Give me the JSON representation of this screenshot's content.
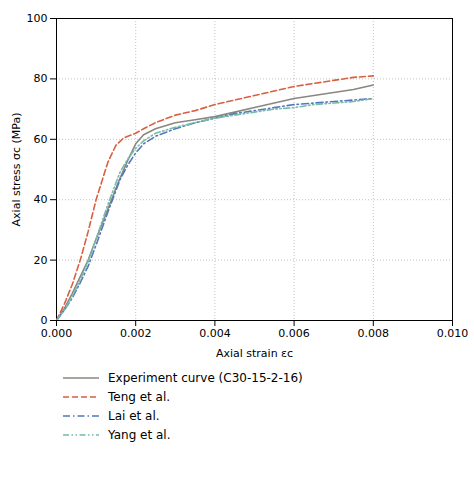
{
  "chart_data": {
    "type": "line",
    "title": "",
    "xlabel": "Axial strain εc",
    "ylabel": "Axial stress σc (MPa)",
    "xlim": [
      0.0,
      0.01
    ],
    "ylim": [
      0,
      100
    ],
    "xticks": [
      {
        "value": 0.0,
        "label": "0.000"
      },
      {
        "value": 0.002,
        "label": "0.002"
      },
      {
        "value": 0.004,
        "label": "0.004"
      },
      {
        "value": 0.006,
        "label": "0.006"
      },
      {
        "value": 0.008,
        "label": "0.008"
      },
      {
        "value": 0.01,
        "label": "0.010"
      }
    ],
    "yticks": [
      0,
      20,
      40,
      60,
      80,
      100
    ],
    "grid": true,
    "legend": "bottom",
    "series": [
      {
        "name": "Experiment curve (C30-15-2-16)",
        "color": "#888880",
        "line_style": "solid",
        "x": [
          0.0,
          0.0002,
          0.0004,
          0.0006,
          0.0008,
          0.001,
          0.0013,
          0.0016,
          0.0018,
          0.002,
          0.0022,
          0.0025,
          0.003,
          0.0035,
          0.004,
          0.0045,
          0.005,
          0.0055,
          0.006,
          0.0065,
          0.007,
          0.0075,
          0.008
        ],
        "values": [
          0.0,
          4.0,
          9.0,
          14.5,
          20.0,
          27.0,
          37.0,
          47.0,
          53.0,
          58.5,
          61.5,
          63.5,
          65.5,
          66.5,
          67.5,
          69.0,
          70.5,
          72.0,
          73.5,
          74.5,
          75.5,
          76.5,
          78.0
        ]
      },
      {
        "name": "Teng et al.",
        "color": "#d96040",
        "line_style": "dashed",
        "x": [
          0.0,
          0.0002,
          0.0004,
          0.0006,
          0.0008,
          0.001,
          0.0013,
          0.0015,
          0.0017,
          0.0019,
          0.002,
          0.0022,
          0.0025,
          0.003,
          0.0035,
          0.004,
          0.0045,
          0.005,
          0.0055,
          0.006,
          0.0065,
          0.007,
          0.0075,
          0.008
        ],
        "values": [
          0.0,
          5.5,
          12.0,
          20.0,
          29.5,
          40.0,
          52.5,
          58.0,
          60.5,
          61.5,
          62.0,
          63.5,
          65.5,
          68.0,
          69.5,
          71.5,
          73.0,
          74.5,
          76.0,
          77.5,
          78.5,
          79.5,
          80.5,
          81.0
        ]
      },
      {
        "name": "Lai et al.",
        "color": "#5577bb",
        "line_style": "dashdot",
        "x": [
          0.0,
          0.0002,
          0.0004,
          0.0006,
          0.0008,
          0.001,
          0.0013,
          0.0016,
          0.0018,
          0.002,
          0.0022,
          0.0025,
          0.003,
          0.0035,
          0.004,
          0.0045,
          0.005,
          0.0055,
          0.006,
          0.0065,
          0.007,
          0.0075,
          0.008
        ],
        "values": [
          0.0,
          3.5,
          7.5,
          12.5,
          18.0,
          25.0,
          36.0,
          46.5,
          51.5,
          55.5,
          58.5,
          61.0,
          63.5,
          65.5,
          67.0,
          68.5,
          69.5,
          70.5,
          71.5,
          72.0,
          72.5,
          73.0,
          73.5
        ]
      },
      {
        "name": "Yang et al.",
        "color": "#77bbaa",
        "line_style": "dashdotdot",
        "x": [
          0.0,
          0.0002,
          0.0004,
          0.0006,
          0.0008,
          0.001,
          0.0013,
          0.0016,
          0.0018,
          0.002,
          0.0022,
          0.0025,
          0.003,
          0.0035,
          0.004,
          0.0045,
          0.005,
          0.0055,
          0.006,
          0.0065,
          0.007,
          0.0075,
          0.008
        ],
        "values": [
          0.0,
          3.5,
          8.0,
          13.5,
          19.5,
          27.0,
          38.5,
          49.0,
          53.5,
          57.0,
          59.5,
          62.0,
          64.0,
          65.5,
          67.0,
          68.0,
          69.0,
          70.0,
          70.5,
          71.5,
          72.0,
          72.5,
          73.5
        ]
      }
    ]
  }
}
